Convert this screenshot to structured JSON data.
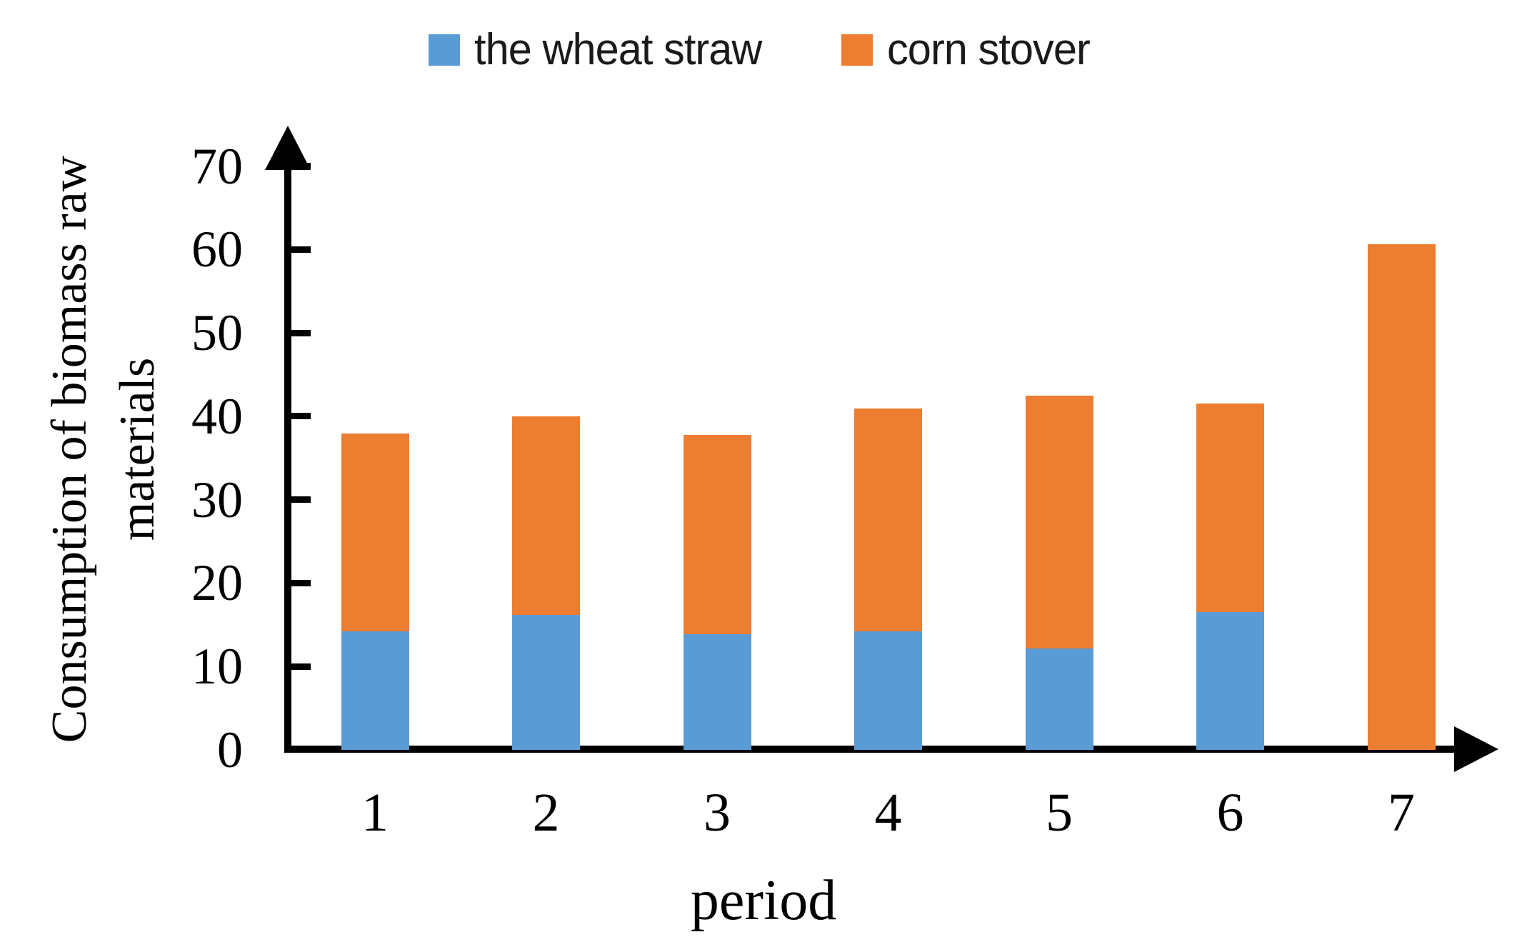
{
  "legend": {
    "items": [
      {
        "label": "the wheat straw",
        "color": "#5B9BD5"
      },
      {
        "label": "corn stover",
        "color": "#ED7D31"
      }
    ]
  },
  "axes": {
    "y_label_line1": "Consumption of biomass raw",
    "y_label_line2": "materials",
    "x_label": "period",
    "y_ticks": [
      0,
      10,
      20,
      30,
      40,
      50,
      60,
      70
    ]
  },
  "colors": {
    "wheat_straw": "#5B9BD5",
    "corn_stover": "#ED7D31",
    "axis": "#000000"
  },
  "chart_data": {
    "type": "bar",
    "stacked": true,
    "categories": [
      "1",
      "2",
      "3",
      "4",
      "5",
      "6",
      "7"
    ],
    "series": [
      {
        "name": "the wheat straw",
        "color": "#5B9BD5",
        "values": [
          14.2,
          16.2,
          13.9,
          14.2,
          12.2,
          16.5,
          0
        ]
      },
      {
        "name": "corn stover",
        "color": "#ED7D31",
        "values": [
          23.7,
          23.8,
          23.9,
          26.7,
          30.3,
          25.0,
          60.6
        ]
      }
    ],
    "totals": [
      37.9,
      40.0,
      37.8,
      40.9,
      42.5,
      41.5,
      60.6
    ],
    "title": "",
    "xlabel": "period",
    "ylabel": "Consumption of biomass raw materials",
    "ylim": [
      0,
      70
    ],
    "y_tick_step": 10,
    "grid": false,
    "legend_position": "top"
  }
}
